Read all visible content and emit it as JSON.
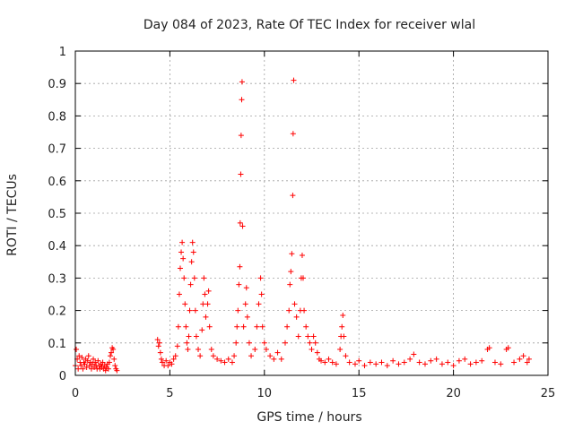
{
  "chart_data": {
    "type": "scatter",
    "title": "Day 084 of 2023, Rate Of TEC Index for receiver wlal",
    "xlabel": "GPS time / hours",
    "ylabel": "ROTI / TECUs",
    "xlim": [
      0,
      25
    ],
    "ylim": [
      0,
      1
    ],
    "x_ticks": [
      0,
      5,
      10,
      15,
      20,
      25
    ],
    "y_ticks": [
      0,
      0.1,
      0.2,
      0.3,
      0.4,
      0.5,
      0.6,
      0.7,
      0.8,
      0.9,
      1
    ],
    "x_tick_labels": [
      "0",
      "5",
      "10",
      "15",
      "20",
      "25"
    ],
    "y_tick_labels": [
      "0",
      "0.1",
      "0.2",
      "0.3",
      "0.4",
      "0.5",
      "0.6",
      "0.7",
      "0.8",
      "0.9",
      "1"
    ],
    "grid": true,
    "marker": "+",
    "color": "#ff0000",
    "series": [
      {
        "name": "ROTI",
        "points": [
          [
            0.0,
            0.03
          ],
          [
            0.05,
            0.08
          ],
          [
            0.1,
            0.05
          ],
          [
            0.15,
            0.02
          ],
          [
            0.2,
            0.06
          ],
          [
            0.25,
            0.04
          ],
          [
            0.3,
            0.03
          ],
          [
            0.35,
            0.055
          ],
          [
            0.4,
            0.02
          ],
          [
            0.45,
            0.04
          ],
          [
            0.5,
            0.035
          ],
          [
            0.55,
            0.05
          ],
          [
            0.6,
            0.025
          ],
          [
            0.65,
            0.045
          ],
          [
            0.7,
            0.06
          ],
          [
            0.75,
            0.03
          ],
          [
            0.8,
            0.04
          ],
          [
            0.85,
            0.02
          ],
          [
            0.9,
            0.035
          ],
          [
            0.95,
            0.05
          ],
          [
            1.0,
            0.025
          ],
          [
            1.05,
            0.04
          ],
          [
            1.1,
            0.03
          ],
          [
            1.15,
            0.02
          ],
          [
            1.2,
            0.045
          ],
          [
            1.25,
            0.03
          ],
          [
            1.3,
            0.02
          ],
          [
            1.35,
            0.035
          ],
          [
            1.4,
            0.025
          ],
          [
            1.45,
            0.04
          ],
          [
            1.5,
            0.02
          ],
          [
            1.55,
            0.03
          ],
          [
            1.6,
            0.015
          ],
          [
            1.65,
            0.025
          ],
          [
            1.7,
            0.035
          ],
          [
            1.75,
            0.02
          ],
          [
            1.8,
            0.04
          ],
          [
            1.85,
            0.06
          ],
          [
            1.9,
            0.07
          ],
          [
            1.95,
            0.085
          ],
          [
            2.0,
            0.08
          ],
          [
            2.05,
            0.05
          ],
          [
            2.1,
            0.03
          ],
          [
            2.15,
            0.02
          ],
          [
            2.2,
            0.015
          ],
          [
            4.35,
            0.11
          ],
          [
            4.4,
            0.09
          ],
          [
            4.45,
            0.1
          ],
          [
            4.5,
            0.07
          ],
          [
            4.55,
            0.05
          ],
          [
            4.6,
            0.04
          ],
          [
            4.7,
            0.03
          ],
          [
            4.8,
            0.045
          ],
          [
            4.9,
            0.03
          ],
          [
            5.0,
            0.04
          ],
          [
            5.1,
            0.035
          ],
          [
            5.2,
            0.05
          ],
          [
            5.3,
            0.06
          ],
          [
            5.4,
            0.09
          ],
          [
            5.45,
            0.15
          ],
          [
            5.5,
            0.25
          ],
          [
            5.55,
            0.33
          ],
          [
            5.6,
            0.38
          ],
          [
            5.65,
            0.41
          ],
          [
            5.7,
            0.36
          ],
          [
            5.75,
            0.3
          ],
          [
            5.8,
            0.22
          ],
          [
            5.85,
            0.15
          ],
          [
            5.9,
            0.1
          ],
          [
            5.95,
            0.08
          ],
          [
            6.0,
            0.12
          ],
          [
            6.05,
            0.2
          ],
          [
            6.1,
            0.28
          ],
          [
            6.15,
            0.35
          ],
          [
            6.2,
            0.41
          ],
          [
            6.25,
            0.38
          ],
          [
            6.3,
            0.3
          ],
          [
            6.35,
            0.2
          ],
          [
            6.4,
            0.12
          ],
          [
            6.5,
            0.08
          ],
          [
            6.6,
            0.06
          ],
          [
            6.7,
            0.14
          ],
          [
            6.75,
            0.22
          ],
          [
            6.8,
            0.3
          ],
          [
            6.85,
            0.25
          ],
          [
            6.9,
            0.18
          ],
          [
            7.0,
            0.22
          ],
          [
            7.05,
            0.26
          ],
          [
            7.1,
            0.15
          ],
          [
            7.2,
            0.08
          ],
          [
            7.3,
            0.06
          ],
          [
            7.5,
            0.05
          ],
          [
            7.7,
            0.045
          ],
          [
            7.9,
            0.04
          ],
          [
            8.1,
            0.05
          ],
          [
            8.3,
            0.04
          ],
          [
            8.4,
            0.06
          ],
          [
            8.5,
            0.1
          ],
          [
            8.55,
            0.15
          ],
          [
            8.6,
            0.2
          ],
          [
            8.65,
            0.28
          ],
          [
            8.7,
            0.335
          ],
          [
            8.72,
            0.47
          ],
          [
            8.75,
            0.62
          ],
          [
            8.77,
            0.74
          ],
          [
            8.8,
            0.85
          ],
          [
            8.82,
            0.905
          ],
          [
            8.85,
            0.46
          ],
          [
            8.9,
            0.15
          ],
          [
            9.0,
            0.22
          ],
          [
            9.05,
            0.27
          ],
          [
            9.1,
            0.18
          ],
          [
            9.2,
            0.1
          ],
          [
            9.3,
            0.06
          ],
          [
            9.5,
            0.08
          ],
          [
            9.6,
            0.15
          ],
          [
            9.7,
            0.22
          ],
          [
            9.8,
            0.3
          ],
          [
            9.85,
            0.25
          ],
          [
            9.9,
            0.15
          ],
          [
            10.0,
            0.1
          ],
          [
            10.1,
            0.08
          ],
          [
            10.3,
            0.06
          ],
          [
            10.5,
            0.05
          ],
          [
            10.7,
            0.07
          ],
          [
            10.9,
            0.05
          ],
          [
            11.1,
            0.1
          ],
          [
            11.2,
            0.15
          ],
          [
            11.3,
            0.2
          ],
          [
            11.35,
            0.28
          ],
          [
            11.4,
            0.32
          ],
          [
            11.45,
            0.375
          ],
          [
            11.5,
            0.555
          ],
          [
            11.52,
            0.745
          ],
          [
            11.55,
            0.91
          ],
          [
            11.6,
            0.22
          ],
          [
            11.7,
            0.18
          ],
          [
            11.8,
            0.12
          ],
          [
            11.9,
            0.2
          ],
          [
            11.95,
            0.3
          ],
          [
            12.0,
            0.37
          ],
          [
            12.05,
            0.3
          ],
          [
            12.1,
            0.2
          ],
          [
            12.2,
            0.15
          ],
          [
            12.3,
            0.12
          ],
          [
            12.4,
            0.1
          ],
          [
            12.5,
            0.08
          ],
          [
            12.6,
            0.12
          ],
          [
            12.7,
            0.1
          ],
          [
            12.8,
            0.07
          ],
          [
            12.9,
            0.05
          ],
          [
            13.0,
            0.045
          ],
          [
            13.2,
            0.04
          ],
          [
            13.4,
            0.05
          ],
          [
            13.6,
            0.04
          ],
          [
            13.8,
            0.035
          ],
          [
            14.0,
            0.08
          ],
          [
            14.05,
            0.12
          ],
          [
            14.1,
            0.15
          ],
          [
            14.15,
            0.185
          ],
          [
            14.2,
            0.12
          ],
          [
            14.3,
            0.06
          ],
          [
            14.5,
            0.04
          ],
          [
            14.8,
            0.035
          ],
          [
            15.0,
            0.045
          ],
          [
            15.3,
            0.03
          ],
          [
            15.6,
            0.04
          ],
          [
            15.9,
            0.035
          ],
          [
            16.2,
            0.04
          ],
          [
            16.5,
            0.03
          ],
          [
            16.8,
            0.045
          ],
          [
            17.1,
            0.035
          ],
          [
            17.4,
            0.04
          ],
          [
            17.7,
            0.05
          ],
          [
            17.9,
            0.065
          ],
          [
            18.2,
            0.04
          ],
          [
            18.5,
            0.035
          ],
          [
            18.8,
            0.045
          ],
          [
            19.1,
            0.05
          ],
          [
            19.4,
            0.035
          ],
          [
            19.7,
            0.04
          ],
          [
            20.0,
            0.03
          ],
          [
            20.3,
            0.045
          ],
          [
            20.6,
            0.05
          ],
          [
            20.9,
            0.035
          ],
          [
            21.2,
            0.04
          ],
          [
            21.5,
            0.045
          ],
          [
            21.8,
            0.08
          ],
          [
            21.9,
            0.085
          ],
          [
            22.2,
            0.04
          ],
          [
            22.5,
            0.035
          ],
          [
            22.8,
            0.08
          ],
          [
            22.9,
            0.085
          ],
          [
            23.2,
            0.04
          ],
          [
            23.5,
            0.05
          ],
          [
            23.7,
            0.06
          ],
          [
            23.9,
            0.04
          ],
          [
            24.0,
            0.05
          ]
        ]
      }
    ]
  }
}
